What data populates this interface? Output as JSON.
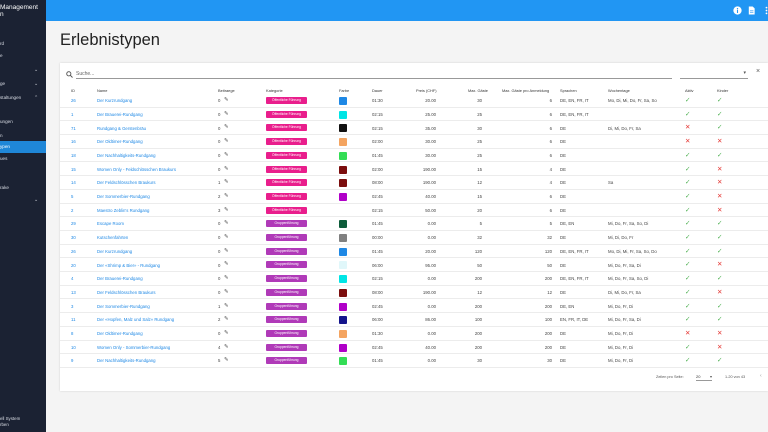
{
  "app": {
    "brand_line1": "Management",
    "brand_line2": "n"
  },
  "sidebar": {
    "items": [
      {
        "label": "rd",
        "chevron": ""
      },
      {
        "label": "e",
        "chevron": ""
      },
      {
        "label": "",
        "chevron": "⌄"
      },
      {
        "label": "ge",
        "chevron": "⌄"
      },
      {
        "label": "staltungen",
        "chevron": "⌃"
      },
      {
        "label": "ungen",
        "chevron": ""
      },
      {
        "label": "n",
        "chevron": ""
      },
      {
        "label": "ypen",
        "chevron": "",
        "active": true
      },
      {
        "label": "ues",
        "chevron": ""
      },
      {
        "label": "",
        "chevron": ""
      },
      {
        "label": "rake",
        "chevron": ""
      },
      {
        "label": "",
        "chevron": "⌄"
      }
    ],
    "footer_line1": "ell System",
    "footer_line2": "rben"
  },
  "topbar": {
    "icons": [
      "info-icon",
      "document-icon",
      "more-vert-icon"
    ]
  },
  "page": {
    "title": "Erlebnistypen"
  },
  "search": {
    "placeholder": "Suche...",
    "value": ""
  },
  "filter": {
    "value": "",
    "arrow": "▾"
  },
  "close_symbol": "×",
  "table": {
    "headers": {
      "id": "ID",
      "name": "Name",
      "anfragen": "Beitraege",
      "kategorie": "Kategorie",
      "farbe": "Farbe",
      "dauer": "Dauer",
      "preis": "Preis (CHF)",
      "max": "Max. Gäste",
      "min": "Max. Gäste pro Anmeldung",
      "sprachen": "Sprachen",
      "wochentage": "Wochentage",
      "aktiv": "Aktiv",
      "kinder": "Kinder"
    },
    "categories": {
      "oeffentlich": {
        "label": "Öffentliche Führung",
        "color": "#e91e8c"
      },
      "gruppe": {
        "label": "Gruppenführung",
        "color": "#b03ab8"
      }
    },
    "rows": [
      {
        "id": "26",
        "name": "Der Kurzrundgang",
        "count": "0",
        "cat": "oeffentlich",
        "color": "#1e88e5",
        "dauer": "01:30",
        "preis": "20.00",
        "max": "30",
        "min": "6",
        "sprachen": "DE, EN, FR, IT",
        "tage": "Mo, Di, Mi, Do, Fr, Sa, So",
        "aktiv": true,
        "kinder": true
      },
      {
        "id": "1",
        "name": "Der Brauerei-Rundgang",
        "count": "0",
        "cat": "oeffentlich",
        "color": "#00e5e5",
        "dauer": "02:15",
        "preis": "25.00",
        "max": "25",
        "min": "6",
        "sprachen": "DE, EN, FR, IT",
        "tage": "",
        "aktiv": true,
        "kinder": true
      },
      {
        "id": "71",
        "name": "Rundgang & Gerstenbräu",
        "count": "0",
        "cat": "oeffentlich",
        "color": "#111111",
        "dauer": "02:15",
        "preis": "35.00",
        "max": "30",
        "min": "6",
        "sprachen": "DE",
        "tage": "Di, Mi, Do, Fr, Sa",
        "aktiv": false,
        "kinder": true
      },
      {
        "id": "16",
        "name": "Der Oldtimer-Rundgang",
        "count": "0",
        "cat": "oeffentlich",
        "color": "#f4a460",
        "dauer": "02:00",
        "preis": "30.00",
        "max": "25",
        "min": "6",
        "sprachen": "DE",
        "tage": "",
        "aktiv": false,
        "kinder": false
      },
      {
        "id": "18",
        "name": "Der Nachhaltigkeits-Rundgang",
        "count": "0",
        "cat": "oeffentlich",
        "color": "#33dd55",
        "dauer": "01:45",
        "preis": "30.00",
        "max": "25",
        "min": "6",
        "sprachen": "DE",
        "tage": "",
        "aktiv": true,
        "kinder": true
      },
      {
        "id": "15",
        "name": "Women Only - Feldschlösschen Braukurs",
        "count": "0",
        "cat": "oeffentlich",
        "color": "#7b0d0d",
        "dauer": "02:00",
        "preis": "190.00",
        "max": "15",
        "min": "4",
        "sprachen": "DE",
        "tage": "",
        "aktiv": true,
        "kinder": false
      },
      {
        "id": "14",
        "name": "Der Feldschlösschen Braukurs",
        "count": "1",
        "cat": "oeffentlich",
        "color": "#7b0d0d",
        "dauer": "08:00",
        "preis": "190.00",
        "max": "12",
        "min": "4",
        "sprachen": "DE",
        "tage": "Sa",
        "aktiv": true,
        "kinder": false
      },
      {
        "id": "5",
        "name": "Der Sommerbier-Rundgang",
        "count": "2",
        "cat": "oeffentlich",
        "color": "#b000c8",
        "dauer": "02:45",
        "preis": "40.00",
        "max": "15",
        "min": "6",
        "sprachen": "DE",
        "tage": "",
        "aktiv": true,
        "kinder": false
      },
      {
        "id": "2",
        "name": "Maestro Zeblin's Rundgang",
        "count": "3",
        "cat": "oeffentlich",
        "color": "",
        "dauer": "02:15",
        "preis": "50.00",
        "max": "20",
        "min": "6",
        "sprachen": "DE",
        "tage": "",
        "aktiv": true,
        "kinder": false
      },
      {
        "id": "29",
        "name": "Escape Room",
        "count": "0",
        "cat": "gruppe",
        "color": "#0d5c3a",
        "dauer": "01:45",
        "preis": "0.00",
        "max": "5",
        "min": "5",
        "sprachen": "DE, EN",
        "tage": "Mi, Do, Fr, Sa, So, Di",
        "aktiv": true,
        "kinder": true
      },
      {
        "id": "30",
        "name": "Kutschenfahrten",
        "count": "0",
        "cat": "gruppe",
        "color": "#808080",
        "dauer": "00:00",
        "preis": "0.00",
        "max": "32",
        "min": "32",
        "sprachen": "DE",
        "tage": "Mi, Di, Do, Fr",
        "aktiv": true,
        "kinder": true
      },
      {
        "id": "26",
        "name": "Der Kurzrundgang",
        "count": "0",
        "cat": "gruppe",
        "color": "#1e88e5",
        "dauer": "01:45",
        "preis": "20.00",
        "max": "120",
        "min": "120",
        "sprachen": "DE, EN, FR, IT",
        "tage": "Mo, Di, Mi, Fr, Sa, So, Do",
        "aktiv": true,
        "kinder": true
      },
      {
        "id": "20",
        "name": "Der «Shrimp & Bier» - Rundgang",
        "count": "0",
        "cat": "gruppe",
        "color": "#e0f7fa",
        "dauer": "06:00",
        "preis": "95.00",
        "max": "50",
        "min": "50",
        "sprachen": "DE",
        "tage": "Mi, Do, Fr, Sa, Di",
        "aktiv": true,
        "kinder": false
      },
      {
        "id": "4",
        "name": "Der Brauerei-Rundgang",
        "count": "0",
        "cat": "gruppe",
        "color": "#00e5e5",
        "dauer": "02:15",
        "preis": "0.00",
        "max": "200",
        "min": "200",
        "sprachen": "DE, EN, FR, IT",
        "tage": "Mi, Do, Fr, Sa, So, Di",
        "aktiv": true,
        "kinder": true
      },
      {
        "id": "13",
        "name": "Der Feldschlösschen Braukurs",
        "count": "0",
        "cat": "gruppe",
        "color": "#7b0d0d",
        "dauer": "08:00",
        "preis": "190.00",
        "max": "12",
        "min": "12",
        "sprachen": "DE",
        "tage": "Di, Mi, Do, Fr, Sa",
        "aktiv": true,
        "kinder": false
      },
      {
        "id": "3",
        "name": "Der Sommerbier-Rundgang",
        "count": "1",
        "cat": "gruppe",
        "color": "#b000c8",
        "dauer": "02:45",
        "preis": "0.00",
        "max": "200",
        "min": "200",
        "sprachen": "DE, EN",
        "tage": "Mi, Do, Fr, Di",
        "aktiv": true,
        "kinder": true
      },
      {
        "id": "11",
        "name": "Der «Hopfen, Malz und Salz» Rundgang",
        "count": "2",
        "cat": "gruppe",
        "color": "#14148c",
        "dauer": "06:00",
        "preis": "86.00",
        "max": "100",
        "min": "100",
        "sprachen": "EN, FR, IT, DE",
        "tage": "Mi, Do, Fr, Sa, Di",
        "aktiv": true,
        "kinder": true
      },
      {
        "id": "8",
        "name": "Der Oldtimer-Rundgang",
        "count": "0",
        "cat": "gruppe",
        "color": "#f4a460",
        "dauer": "01:30",
        "preis": "0.00",
        "max": "200",
        "min": "200",
        "sprachen": "DE",
        "tage": "Mi, Do, Fr, Di",
        "aktiv": false,
        "kinder": false
      },
      {
        "id": "10",
        "name": "Women Only - Sommerbier-Rundgang",
        "count": "4",
        "cat": "gruppe",
        "color": "#b000c8",
        "dauer": "02:45",
        "preis": "40.00",
        "max": "200",
        "min": "200",
        "sprachen": "DE",
        "tage": "Mi, Do, Fr, Di",
        "aktiv": true,
        "kinder": false
      },
      {
        "id": "9",
        "name": "Der Nachhaltigkeits-Rundgang",
        "count": "5",
        "cat": "gruppe",
        "color": "#33dd55",
        "dauer": "01:45",
        "preis": "0.00",
        "max": "30",
        "min": "30",
        "sprachen": "DE",
        "tage": "Mi, Do, Fr, Di",
        "aktiv": true,
        "kinder": true
      }
    ]
  },
  "pagination": {
    "rows_label": "Zeilen pro Seite:",
    "rows_value": "20",
    "range": "1-20 von 43",
    "prev": "‹",
    "next": "›"
  }
}
